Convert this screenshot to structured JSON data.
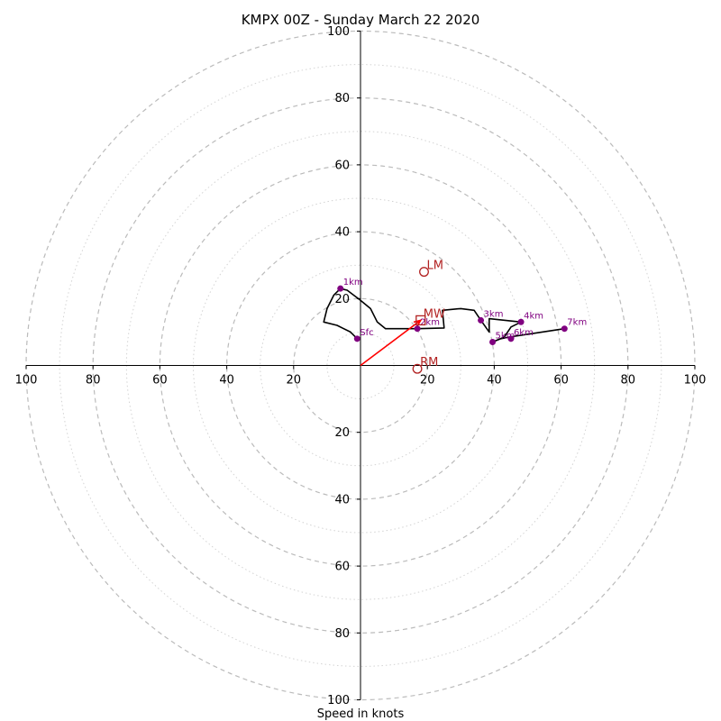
{
  "chart_data": {
    "type": "hodograph",
    "title": "KMPX 00Z - Sunday March 22 2020",
    "xlabel": "Speed in knots",
    "range": [
      -100,
      100
    ],
    "ring_ticks": [
      20,
      40,
      60,
      80,
      100
    ],
    "axis_tick_labels": {
      "x": [
        "100",
        "80",
        "60",
        "40",
        "20",
        "20",
        "40",
        "60",
        "80",
        "100"
      ],
      "y_top": [
        "100",
        "80",
        "60",
        "40",
        "20"
      ],
      "y_bottom": [
        "20",
        "40",
        "60",
        "80",
        "100"
      ]
    },
    "grid": true,
    "colors": {
      "trace": "#000000",
      "height_marker": "#800080",
      "motion": "#b22222",
      "shear_vector": "#ff0000",
      "grid": "#bbbbbb"
    },
    "trace": [
      [
        -1,
        8
      ],
      [
        -3,
        10
      ],
      [
        -7,
        12
      ],
      [
        -11,
        13
      ],
      [
        -10,
        17
      ],
      [
        -8,
        21
      ],
      [
        -6,
        23
      ],
      [
        -4,
        22.5
      ],
      [
        -2,
        21
      ],
      [
        0,
        19.5
      ],
      [
        3,
        17
      ],
      [
        5,
        13
      ],
      [
        7.5,
        11
      ],
      [
        17,
        11
      ],
      [
        25,
        11.2
      ],
      [
        24.5,
        16.5
      ],
      [
        30,
        17
      ],
      [
        34,
        16.5
      ],
      [
        36,
        13.5
      ],
      [
        38.5,
        10
      ],
      [
        38.5,
        14
      ],
      [
        48,
        13
      ],
      [
        45,
        11.5
      ],
      [
        43,
        8.5
      ],
      [
        39.5,
        7
      ],
      [
        42,
        8
      ],
      [
        44.5,
        8.5
      ],
      [
        51,
        9.5
      ],
      [
        61,
        11
      ]
    ],
    "height_markers": [
      {
        "label": "Sfc",
        "u": -1,
        "v": 8
      },
      {
        "label": "1km",
        "u": -6,
        "v": 23
      },
      {
        "label": "2km",
        "u": 17,
        "v": 11
      },
      {
        "label": "3km",
        "u": 36,
        "v": 13.5
      },
      {
        "label": "4km",
        "u": 48,
        "v": 13
      },
      {
        "label": "5km",
        "u": 39.5,
        "v": 7
      },
      {
        "label": "6km",
        "u": 45,
        "v": 8
      },
      {
        "label": "7km",
        "u": 61,
        "v": 11
      }
    ],
    "storm_motions": [
      {
        "label": "LM",
        "u": 19,
        "v": 28,
        "marker": "circle"
      },
      {
        "label": "MW",
        "u": 18,
        "v": 13.5,
        "marker": "square"
      },
      {
        "label": "RM",
        "u": 17,
        "v": -1,
        "marker": "circle"
      }
    ],
    "shear_vector": {
      "from": [
        0,
        0
      ],
      "to": [
        18,
        13.5
      ]
    }
  }
}
